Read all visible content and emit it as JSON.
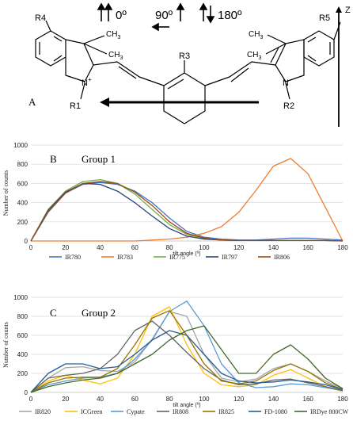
{
  "panelA": {
    "label": "A",
    "r4": "R4",
    "r5": "R5",
    "r3": "R3",
    "r1": "R1",
    "r2": "R2",
    "methyl": "CH3",
    "methyl_main": "CH",
    "methyl_sub": "3",
    "n_plus": "N",
    "plus": "+",
    "n": "N",
    "orient_0": "0º",
    "orient_90": "90º",
    "orient_180": "180º",
    "axis_z": "Z"
  },
  "chart_data": [
    {
      "type": "line",
      "panel_label": "B",
      "title": "Group 1",
      "xlabel": "tilt angle (º)",
      "ylabel": "Number of counts",
      "xlim": [
        0,
        180
      ],
      "ylim": [
        0,
        1000
      ],
      "xticks": [
        "0",
        "20",
        "40",
        "60",
        "80",
        "100",
        "120",
        "140",
        "160",
        "180"
      ],
      "yticks": [
        "0",
        "200",
        "400",
        "600",
        "800",
        "1000"
      ],
      "legend_position": "bottom",
      "x": [
        0,
        10,
        20,
        30,
        40,
        50,
        60,
        70,
        80,
        90,
        100,
        110,
        120,
        130,
        140,
        150,
        160,
        170,
        180
      ],
      "series": [
        {
          "name": "IR780",
          "color": "#4472c4",
          "values": [
            0,
            300,
            500,
            590,
            610,
            590,
            520,
            400,
            240,
            100,
            40,
            20,
            10,
            10,
            20,
            30,
            30,
            20,
            10
          ]
        },
        {
          "name": "IR783",
          "color": "#ed7d31",
          "values": [
            0,
            0,
            0,
            0,
            0,
            0,
            0,
            10,
            20,
            40,
            80,
            150,
            300,
            530,
            780,
            860,
            700,
            350,
            0
          ]
        },
        {
          "name": "IR775",
          "color": "#70ad47",
          "values": [
            0,
            330,
            520,
            620,
            640,
            600,
            490,
            330,
            170,
            70,
            25,
            10,
            5,
            5,
            5,
            5,
            5,
            5,
            0
          ]
        },
        {
          "name": "IR797",
          "color": "#264478",
          "values": [
            0,
            320,
            510,
            600,
            590,
            520,
            400,
            260,
            130,
            50,
            20,
            10,
            5,
            5,
            5,
            5,
            5,
            5,
            0
          ]
        },
        {
          "name": "IR806",
          "color": "#9e480e",
          "values": [
            0,
            310,
            500,
            600,
            620,
            600,
            510,
            370,
            200,
            80,
            30,
            10,
            5,
            5,
            5,
            5,
            5,
            5,
            0
          ]
        }
      ]
    },
    {
      "type": "line",
      "panel_label": "C",
      "title": "Group 2",
      "xlabel": "tilt angle (º)",
      "ylabel": "Number of counts",
      "xlim": [
        0,
        180
      ],
      "ylim": [
        0,
        1000
      ],
      "xticks": [
        "0",
        "20",
        "40",
        "60",
        "80",
        "100",
        "120",
        "140",
        "160",
        "180"
      ],
      "yticks": [
        "0",
        "200",
        "400",
        "600",
        "800",
        "1000"
      ],
      "legend_position": "bottom",
      "x": [
        0,
        10,
        20,
        30,
        40,
        50,
        60,
        70,
        80,
        90,
        100,
        110,
        120,
        130,
        140,
        150,
        160,
        170,
        180
      ],
      "series": [
        {
          "name": "IR820",
          "color": "#a5a5a5",
          "values": [
            0,
            150,
            260,
            270,
            230,
            220,
            320,
            560,
            850,
            800,
            400,
            150,
            110,
            140,
            250,
            300,
            220,
            120,
            40
          ]
        },
        {
          "name": "ICGreen",
          "color": "#ffc000",
          "values": [
            0,
            120,
            180,
            130,
            90,
            150,
            400,
            800,
            900,
            500,
            200,
            80,
            60,
            80,
            180,
            240,
            150,
            60,
            10
          ]
        },
        {
          "name": "Cypate",
          "color": "#5b9bd5",
          "values": [
            0,
            80,
            120,
            150,
            160,
            200,
            350,
            550,
            850,
            960,
            700,
            300,
            100,
            50,
            60,
            90,
            80,
            50,
            20
          ]
        },
        {
          "name": "IR808",
          "color": "#636363",
          "values": [
            0,
            150,
            180,
            200,
            250,
            400,
            650,
            750,
            600,
            420,
            250,
            130,
            80,
            90,
            130,
            140,
            100,
            60,
            20
          ]
        },
        {
          "name": "IR825",
          "color": "#997300",
          "values": [
            0,
            100,
            150,
            160,
            160,
            250,
            500,
            780,
            860,
            600,
            300,
            120,
            90,
            120,
            230,
            300,
            220,
            100,
            30
          ]
        },
        {
          "name": "FD-1080",
          "color": "#255e91",
          "values": [
            0,
            200,
            300,
            300,
            250,
            270,
            400,
            550,
            650,
            600,
            400,
            200,
            120,
            100,
            110,
            130,
            110,
            80,
            30
          ]
        },
        {
          "name": "IRDye 800CW",
          "color": "#43682b",
          "values": [
            0,
            60,
            100,
            130,
            150,
            200,
            300,
            400,
            550,
            650,
            700,
            450,
            200,
            200,
            400,
            500,
            350,
            150,
            40
          ]
        }
      ]
    }
  ]
}
